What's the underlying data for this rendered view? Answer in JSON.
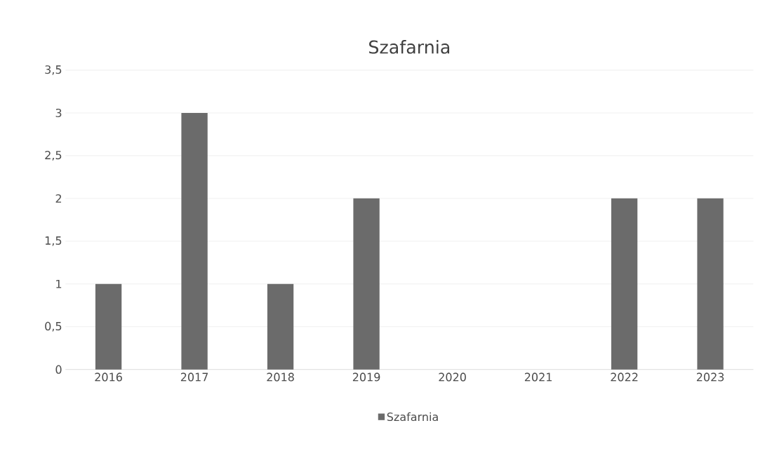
{
  "chart_data": {
    "type": "bar",
    "title": "Szafarnia",
    "categories": [
      "2016",
      "2017",
      "2018",
      "2019",
      "2020",
      "2021",
      "2022",
      "2023"
    ],
    "series": [
      {
        "name": "Szafarnia",
        "color": "#6b6b6b",
        "values": [
          1,
          3,
          1,
          2,
          0,
          0,
          2,
          2
        ]
      }
    ],
    "ylim": [
      0,
      3.5
    ],
    "yticks": [
      {
        "value": 0,
        "label": "0"
      },
      {
        "value": 0.5,
        "label": "0,5"
      },
      {
        "value": 1,
        "label": "1"
      },
      {
        "value": 1.5,
        "label": "1,5"
      },
      {
        "value": 2,
        "label": "2"
      },
      {
        "value": 2.5,
        "label": "2,5"
      },
      {
        "value": 3,
        "label": "3"
      },
      {
        "value": 3.5,
        "label": "3,5"
      }
    ],
    "grid": "y",
    "legend": "bottom"
  }
}
